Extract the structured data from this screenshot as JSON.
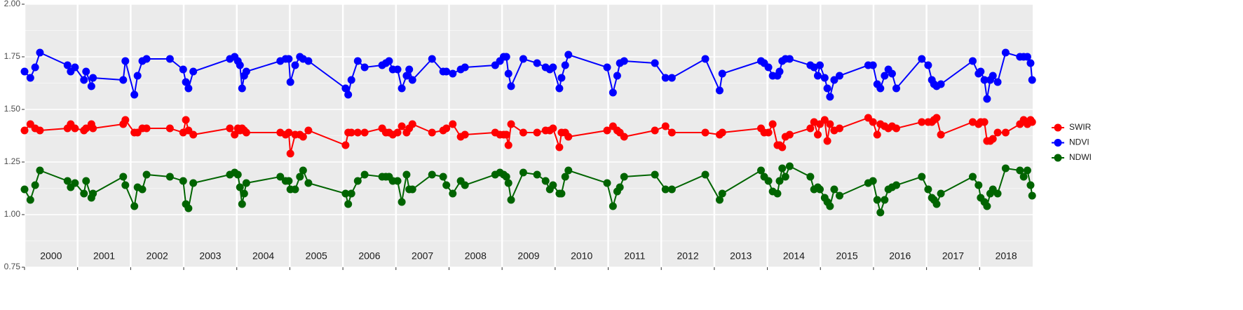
{
  "chart_data": {
    "type": "line",
    "x": [
      2000.0,
      2000.11,
      2000.2,
      2000.29,
      2000.81,
      2000.87,
      2000.95,
      2001.12,
      2001.16,
      2001.26,
      2001.29,
      2001.86,
      2001.9,
      2002.07,
      2002.13,
      2002.22,
      2002.3,
      2002.74,
      2002.99,
      2003.04,
      2003.09,
      2003.18,
      2003.87,
      2003.96,
      2004.02,
      2004.06,
      2004.1,
      2004.14,
      2004.18,
      2004.82,
      2004.92,
      2004.98,
      2005.01,
      2005.1,
      2005.19,
      2005.25,
      2005.35,
      2006.05,
      2006.1,
      2006.16,
      2006.28,
      2006.41,
      2006.74,
      2006.81,
      2006.87,
      2006.94,
      2007.03,
      2007.11,
      2007.2,
      2007.25,
      2007.31,
      2007.68,
      2007.89,
      2007.95,
      2008.07,
      2008.22,
      2008.3,
      2008.87,
      2008.96,
      2009.03,
      2009.08,
      2009.12,
      2009.17,
      2009.4,
      2009.66,
      2009.82,
      2009.9,
      2009.96,
      2010.08,
      2010.12,
      2010.19,
      2010.25,
      2010.98,
      2011.09,
      2011.17,
      2011.22,
      2011.3,
      2011.88,
      2012.08,
      2012.2,
      2012.83,
      2013.1,
      2013.15,
      2013.88,
      2013.94,
      2014.02,
      2014.1,
      2014.19,
      2014.23,
      2014.28,
      2014.34,
      2014.42,
      2014.81,
      2014.88,
      2014.95,
      2014.99,
      2015.08,
      2015.13,
      2015.18,
      2015.26,
      2015.36,
      2015.9,
      2015.99,
      2016.07,
      2016.13,
      2016.21,
      2016.28,
      2016.35,
      2016.43,
      2016.91,
      2017.03,
      2017.1,
      2017.14,
      2017.19,
      2017.27,
      2017.87,
      2017.98,
      2018.02,
      2018.09,
      2018.14,
      2018.2,
      2018.25,
      2018.34,
      2018.49,
      2018.76,
      2018.83,
      2018.9,
      2018.96,
      2018.99
    ],
    "series": [
      {
        "name": "SWIR",
        "color": "#ff0000",
        "values": [
          1.4,
          1.43,
          1.41,
          1.4,
          1.41,
          1.43,
          1.41,
          1.4,
          1.41,
          1.43,
          1.41,
          1.43,
          1.45,
          1.39,
          1.39,
          1.41,
          1.41,
          1.41,
          1.39,
          1.45,
          1.4,
          1.38,
          1.41,
          1.38,
          1.41,
          1.4,
          1.41,
          1.4,
          1.39,
          1.39,
          1.38,
          1.39,
          1.29,
          1.38,
          1.38,
          1.37,
          1.4,
          1.33,
          1.39,
          1.39,
          1.39,
          1.39,
          1.41,
          1.39,
          1.39,
          1.38,
          1.39,
          1.42,
          1.39,
          1.41,
          1.43,
          1.39,
          1.4,
          1.41,
          1.43,
          1.37,
          1.38,
          1.39,
          1.38,
          1.38,
          1.38,
          1.33,
          1.43,
          1.39,
          1.39,
          1.4,
          1.4,
          1.41,
          1.32,
          1.39,
          1.39,
          1.37,
          1.4,
          1.42,
          1.4,
          1.39,
          1.37,
          1.4,
          1.42,
          1.39,
          1.39,
          1.38,
          1.39,
          1.41,
          1.39,
          1.39,
          1.43,
          1.33,
          1.33,
          1.32,
          1.37,
          1.38,
          1.41,
          1.44,
          1.38,
          1.43,
          1.45,
          1.35,
          1.43,
          1.4,
          1.41,
          1.46,
          1.44,
          1.38,
          1.43,
          1.42,
          1.41,
          1.42,
          1.41,
          1.44,
          1.44,
          1.44,
          1.45,
          1.46,
          1.38,
          1.44,
          1.43,
          1.44,
          1.44,
          1.35,
          1.35,
          1.36,
          1.39,
          1.39,
          1.43,
          1.45,
          1.43,
          1.45,
          1.44
        ]
      },
      {
        "name": "NDVI",
        "color": "#0000ff",
        "values": [
          1.68,
          1.65,
          1.7,
          1.77,
          1.71,
          1.68,
          1.7,
          1.64,
          1.68,
          1.61,
          1.65,
          1.64,
          1.73,
          1.57,
          1.66,
          1.73,
          1.74,
          1.74,
          1.69,
          1.63,
          1.6,
          1.68,
          1.74,
          1.75,
          1.73,
          1.71,
          1.6,
          1.66,
          1.68,
          1.73,
          1.74,
          1.74,
          1.63,
          1.71,
          1.75,
          1.74,
          1.73,
          1.6,
          1.57,
          1.64,
          1.73,
          1.7,
          1.71,
          1.72,
          1.73,
          1.69,
          1.69,
          1.6,
          1.66,
          1.69,
          1.64,
          1.74,
          1.68,
          1.68,
          1.67,
          1.69,
          1.7,
          1.71,
          1.73,
          1.75,
          1.75,
          1.67,
          1.61,
          1.74,
          1.72,
          1.7,
          1.69,
          1.7,
          1.6,
          1.65,
          1.71,
          1.76,
          1.7,
          1.58,
          1.66,
          1.72,
          1.73,
          1.72,
          1.65,
          1.65,
          1.74,
          1.59,
          1.67,
          1.73,
          1.72,
          1.7,
          1.66,
          1.66,
          1.68,
          1.73,
          1.74,
          1.74,
          1.71,
          1.7,
          1.66,
          1.71,
          1.65,
          1.6,
          1.56,
          1.64,
          1.66,
          1.71,
          1.71,
          1.62,
          1.6,
          1.66,
          1.69,
          1.67,
          1.6,
          1.74,
          1.71,
          1.64,
          1.62,
          1.61,
          1.62,
          1.73,
          1.67,
          1.68,
          1.64,
          1.55,
          1.64,
          1.66,
          1.63,
          1.77,
          1.75,
          1.75,
          1.75,
          1.72,
          1.64
        ]
      },
      {
        "name": "NDWI",
        "color": "#006400",
        "values": [
          1.12,
          1.07,
          1.14,
          1.21,
          1.16,
          1.13,
          1.15,
          1.1,
          1.16,
          1.08,
          1.1,
          1.18,
          1.14,
          1.04,
          1.13,
          1.12,
          1.19,
          1.18,
          1.16,
          1.05,
          1.03,
          1.15,
          1.19,
          1.2,
          1.19,
          1.13,
          1.05,
          1.1,
          1.15,
          1.18,
          1.16,
          1.16,
          1.12,
          1.12,
          1.18,
          1.21,
          1.15,
          1.1,
          1.05,
          1.1,
          1.16,
          1.19,
          1.18,
          1.18,
          1.18,
          1.16,
          1.16,
          1.06,
          1.19,
          1.12,
          1.12,
          1.19,
          1.18,
          1.14,
          1.1,
          1.16,
          1.14,
          1.19,
          1.2,
          1.19,
          1.18,
          1.15,
          1.07,
          1.2,
          1.19,
          1.16,
          1.12,
          1.14,
          1.1,
          1.1,
          1.18,
          1.21,
          1.15,
          1.04,
          1.11,
          1.13,
          1.18,
          1.19,
          1.12,
          1.12,
          1.19,
          1.07,
          1.1,
          1.21,
          1.18,
          1.16,
          1.11,
          1.1,
          1.16,
          1.22,
          1.18,
          1.23,
          1.18,
          1.12,
          1.13,
          1.12,
          1.08,
          1.06,
          1.04,
          1.12,
          1.09,
          1.15,
          1.16,
          1.07,
          1.01,
          1.07,
          1.12,
          1.13,
          1.14,
          1.18,
          1.12,
          1.08,
          1.07,
          1.05,
          1.1,
          1.18,
          1.14,
          1.08,
          1.06,
          1.04,
          1.1,
          1.12,
          1.1,
          1.22,
          1.21,
          1.18,
          1.21,
          1.14,
          1.09
        ]
      }
    ],
    "xlim": [
      2000,
      2019
    ],
    "xticks": [
      2000,
      2001,
      2002,
      2003,
      2004,
      2005,
      2006,
      2007,
      2008,
      2009,
      2010,
      2011,
      2012,
      2013,
      2014,
      2015,
      2016,
      2017,
      2018
    ],
    "ylim": [
      0.75,
      2.0
    ],
    "yticks": [
      {
        "value": 0.75,
        "label": "0.75"
      },
      {
        "value": 1.0,
        "label": "1.00"
      },
      {
        "value": 1.25,
        "label": "1.25"
      },
      {
        "value": 1.5,
        "label": "1.50"
      },
      {
        "value": 1.75,
        "label": "1.75"
      },
      {
        "value": 2.0,
        "label": "2.00"
      }
    ],
    "grid": true,
    "legend": "right"
  }
}
